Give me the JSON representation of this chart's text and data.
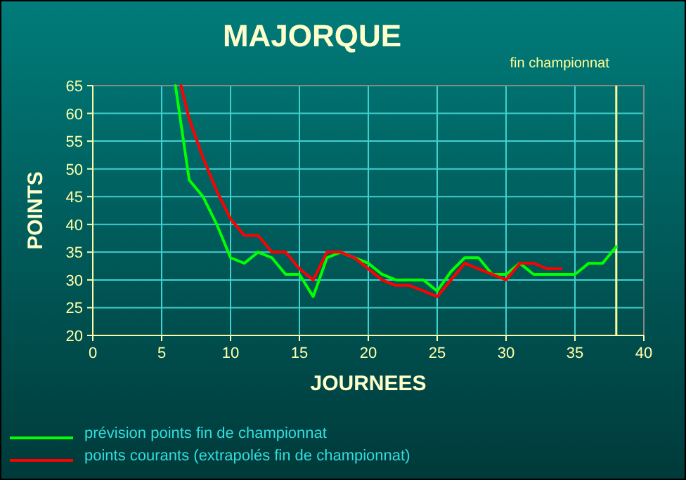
{
  "chart_data": {
    "type": "line",
    "title": "MAJORQUE",
    "xlabel": "JOURNEES",
    "ylabel": "POINTS",
    "xlim": [
      0,
      40
    ],
    "xticks": [
      0,
      5,
      10,
      15,
      20,
      25,
      30,
      35,
      40
    ],
    "ylim": [
      20,
      65
    ],
    "yticks": [
      20,
      25,
      30,
      35,
      40,
      45,
      50,
      55,
      60,
      65
    ],
    "grid": true,
    "legend": "bottom",
    "marker": "none",
    "line_style": "solid",
    "ref_lines": [
      {
        "axis": "x",
        "value": 38,
        "label": "fin championnat",
        "color": "#ffff99"
      }
    ],
    "series": [
      {
        "name": "prévision points fin de championnat",
        "color": "#00ff00",
        "x": [
          6,
          7,
          8,
          9,
          10,
          11,
          12,
          13,
          14,
          15,
          16,
          17,
          18,
          19,
          20,
          21,
          22,
          23,
          24,
          25,
          26,
          27,
          28,
          29,
          30,
          31,
          32,
          33,
          34,
          35,
          36,
          37,
          38
        ],
        "values": [
          65,
          48,
          45,
          40,
          34,
          33,
          35,
          34,
          31,
          31,
          27,
          34,
          35,
          34,
          33,
          31,
          30,
          30,
          30,
          28,
          31.5,
          34,
          34,
          31,
          31,
          33,
          31,
          31,
          31,
          31,
          33,
          33,
          36
        ]
      },
      {
        "name": "points courants (extrapolés fin de championnat)",
        "color": "#ff0000",
        "x": [
          6.4,
          7,
          8,
          9,
          10,
          11,
          12,
          13,
          14,
          15,
          16,
          17,
          18,
          19,
          20,
          21,
          22,
          23,
          24,
          25,
          26,
          27,
          28,
          29,
          30,
          31,
          32,
          33,
          34
        ],
        "values": [
          65,
          59,
          52,
          46,
          41,
          38,
          38,
          35,
          35,
          32,
          30,
          35,
          35,
          34,
          32,
          30,
          29,
          29,
          28,
          27,
          30,
          33,
          32,
          31,
          30,
          33,
          33,
          32,
          32
        ]
      }
    ]
  }
}
